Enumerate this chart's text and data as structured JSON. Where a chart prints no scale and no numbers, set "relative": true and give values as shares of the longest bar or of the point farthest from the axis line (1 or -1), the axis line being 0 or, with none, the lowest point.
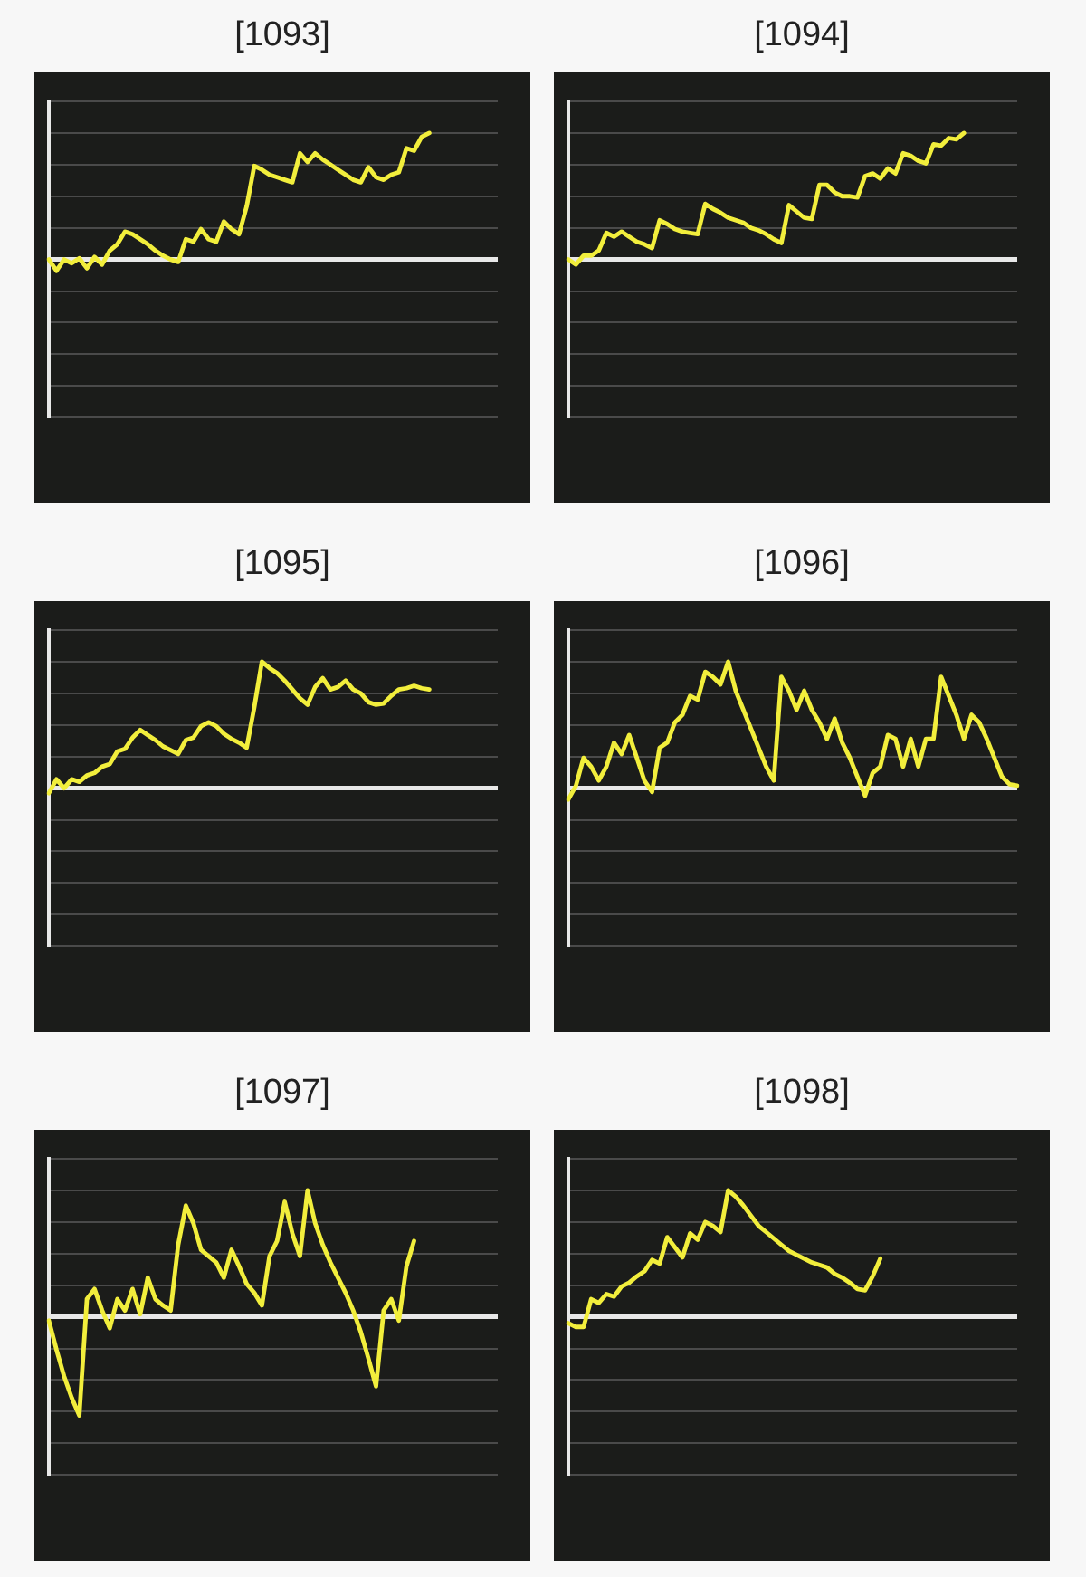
{
  "chart_data": [
    {
      "type": "line",
      "title": "[1093]",
      "relative": true,
      "grid": "y",
      "marker": "none",
      "line_style": "solid",
      "categories": [
        null,
        null,
        null,
        null,
        null,
        null,
        null,
        null,
        null,
        null,
        null,
        null,
        null,
        null,
        null,
        null,
        null,
        null,
        null,
        null,
        null,
        null,
        null,
        null,
        null,
        null,
        null,
        null,
        null,
        null,
        null,
        null,
        null,
        null,
        null,
        null,
        null,
        null,
        null,
        null,
        null,
        null,
        null,
        null,
        null,
        null,
        null,
        null,
        null,
        null,
        null,
        null,
        null,
        null,
        null,
        null,
        null,
        null,
        null,
        null
      ],
      "series": [
        {
          "color": "#f2ee3c",
          "values": [
            0,
            -0.09,
            0,
            -0.03,
            0.01,
            -0.07,
            0.02,
            -0.04,
            0.07,
            0.12,
            0.22,
            0.2,
            0.16,
            0.12,
            0.07,
            0.03,
            0,
            -0.02,
            0.16,
            0.14,
            0.24,
            0.16,
            0.14,
            0.3,
            0.24,
            0.2,
            0.42,
            0.74,
            0.71,
            0.67,
            0.65,
            0.63,
            0.61,
            0.84,
            0.77,
            0.84,
            0.79,
            0.75,
            0.71,
            0.67,
            0.63,
            0.61,
            0.73,
            0.65,
            0.63,
            0.67,
            0.69,
            0.88,
            0.86,
            0.97,
            1,
            null,
            null,
            null,
            null,
            null,
            null,
            null,
            null,
            null
          ]
        }
      ]
    },
    {
      "type": "line",
      "title": "[1094]",
      "relative": true,
      "grid": "y",
      "marker": "none",
      "line_style": "solid",
      "categories": [
        null,
        null,
        null,
        null,
        null,
        null,
        null,
        null,
        null,
        null,
        null,
        null,
        null,
        null,
        null,
        null,
        null,
        null,
        null,
        null,
        null,
        null,
        null,
        null,
        null,
        null,
        null,
        null,
        null,
        null,
        null,
        null,
        null,
        null,
        null,
        null,
        null,
        null,
        null,
        null,
        null,
        null,
        null,
        null,
        null,
        null,
        null,
        null,
        null,
        null,
        null,
        null,
        null,
        null,
        null,
        null,
        null,
        null,
        null,
        null
      ],
      "series": [
        {
          "color": "#f2ee3c",
          "values": [
            0,
            -0.04,
            0.03,
            0.03,
            0.07,
            0.21,
            0.18,
            0.22,
            0.18,
            0.14,
            0.12,
            0.09,
            0.31,
            0.28,
            0.24,
            0.22,
            0.21,
            0.2,
            0.44,
            0.4,
            0.37,
            0.33,
            0.31,
            0.29,
            0.25,
            0.23,
            0.2,
            0.16,
            0.13,
            0.43,
            0.38,
            0.33,
            0.32,
            0.59,
            0.59,
            0.53,
            0.5,
            0.5,
            0.49,
            0.66,
            0.68,
            0.64,
            0.72,
            0.68,
            0.84,
            0.82,
            0.78,
            0.76,
            0.91,
            0.9,
            0.96,
            0.95,
            1,
            null,
            null,
            null,
            null,
            null,
            null,
            null
          ]
        }
      ]
    },
    {
      "type": "line",
      "title": "[1095]",
      "relative": true,
      "grid": "y",
      "marker": "none",
      "line_style": "solid",
      "categories": [
        null,
        null,
        null,
        null,
        null,
        null,
        null,
        null,
        null,
        null,
        null,
        null,
        null,
        null,
        null,
        null,
        null,
        null,
        null,
        null,
        null,
        null,
        null,
        null,
        null,
        null,
        null,
        null,
        null,
        null,
        null,
        null,
        null,
        null,
        null,
        null,
        null,
        null,
        null,
        null,
        null,
        null,
        null,
        null,
        null,
        null,
        null,
        null,
        null,
        null,
        null,
        null,
        null,
        null,
        null,
        null,
        null,
        null,
        null,
        null
      ],
      "series": [
        {
          "color": "#f2ee3c",
          "values": [
            -0.04,
            0.07,
            0,
            0.07,
            0.05,
            0.1,
            0.12,
            0.17,
            0.19,
            0.29,
            0.31,
            0.4,
            0.46,
            0.42,
            0.38,
            0.33,
            0.3,
            0.27,
            0.38,
            0.4,
            0.49,
            0.52,
            0.49,
            0.43,
            0.39,
            0.36,
            0.32,
            0.64,
            1,
            0.95,
            0.91,
            0.85,
            0.78,
            0.71,
            0.66,
            0.8,
            0.87,
            0.78,
            0.8,
            0.85,
            0.78,
            0.75,
            0.68,
            0.66,
            0.67,
            0.73,
            0.78,
            0.79,
            0.81,
            0.79,
            0.78,
            null,
            null,
            null,
            null,
            null,
            null,
            null,
            null,
            null
          ]
        }
      ]
    },
    {
      "type": "line",
      "title": "[1096]",
      "relative": true,
      "grid": "y",
      "marker": "none",
      "line_style": "solid",
      "categories": [
        null,
        null,
        null,
        null,
        null,
        null,
        null,
        null,
        null,
        null,
        null,
        null,
        null,
        null,
        null,
        null,
        null,
        null,
        null,
        null,
        null,
        null,
        null,
        null,
        null,
        null,
        null,
        null,
        null,
        null,
        null,
        null,
        null,
        null,
        null,
        null,
        null,
        null,
        null,
        null,
        null,
        null,
        null,
        null,
        null,
        null,
        null,
        null,
        null,
        null,
        null,
        null,
        null,
        null,
        null,
        null,
        null,
        null,
        null,
        null
      ],
      "series": [
        {
          "color": "#f2ee3c",
          "values": [
            -0.09,
            0.02,
            0.24,
            0.17,
            0.06,
            0.17,
            0.36,
            0.27,
            0.42,
            0.24,
            0.06,
            -0.03,
            0.32,
            0.36,
            0.52,
            0.58,
            0.73,
            0.7,
            0.92,
            0.88,
            0.82,
            1,
            0.77,
            0.62,
            0.47,
            0.32,
            0.17,
            0.06,
            0.88,
            0.77,
            0.62,
            0.77,
            0.62,
            0.52,
            0.39,
            0.55,
            0.36,
            0.24,
            0.09,
            -0.06,
            0.12,
            0.17,
            0.42,
            0.39,
            0.17,
            0.39,
            0.17,
            0.39,
            0.39,
            0.88,
            0.73,
            0.58,
            0.39,
            0.58,
            0.52,
            0.39,
            0.24,
            0.09,
            0.03,
            0.02
          ]
        }
      ]
    },
    {
      "type": "line",
      "title": "[1097]",
      "relative": true,
      "grid": "y",
      "marker": "none",
      "line_style": "solid",
      "categories": [
        null,
        null,
        null,
        null,
        null,
        null,
        null,
        null,
        null,
        null,
        null,
        null,
        null,
        null,
        null,
        null,
        null,
        null,
        null,
        null,
        null,
        null,
        null,
        null,
        null,
        null,
        null,
        null,
        null,
        null,
        null,
        null,
        null,
        null,
        null,
        null,
        null,
        null,
        null,
        null,
        null,
        null,
        null,
        null,
        null,
        null,
        null,
        null,
        null,
        null,
        null,
        null,
        null,
        null,
        null,
        null,
        null,
        null,
        null,
        null
      ],
      "series": [
        {
          "color": "#f2ee3c",
          "values": [
            -0.03,
            -0.26,
            -0.47,
            -0.64,
            -0.78,
            0.14,
            0.22,
            0.05,
            -0.09,
            0.14,
            0.05,
            0.22,
            0.02,
            0.31,
            0.14,
            0.09,
            0.05,
            0.57,
            0.88,
            0.74,
            0.53,
            0.48,
            0.43,
            0.31,
            0.53,
            0.4,
            0.26,
            0.19,
            0.09,
            0.48,
            0.6,
            0.91,
            0.66,
            0.48,
            1,
            0.74,
            0.57,
            0.43,
            0.31,
            0.19,
            0.05,
            -0.12,
            -0.33,
            -0.55,
            0.05,
            0.14,
            -0.03,
            0.4,
            0.6,
            null,
            null,
            null,
            null,
            null,
            null,
            null,
            null,
            null,
            null,
            null
          ]
        }
      ]
    },
    {
      "type": "line",
      "title": "[1098]",
      "relative": true,
      "grid": "y",
      "marker": "none",
      "line_style": "solid",
      "categories": [
        null,
        null,
        null,
        null,
        null,
        null,
        null,
        null,
        null,
        null,
        null,
        null,
        null,
        null,
        null,
        null,
        null,
        null,
        null,
        null,
        null,
        null,
        null,
        null,
        null,
        null,
        null,
        null,
        null,
        null,
        null,
        null,
        null,
        null,
        null,
        null,
        null,
        null,
        null,
        null,
        null,
        null,
        null,
        null,
        null,
        null,
        null,
        null,
        null,
        null,
        null,
        null,
        null,
        null,
        null,
        null,
        null,
        null,
        null,
        null
      ],
      "series": [
        {
          "color": "#f2ee3c",
          "values": [
            -0.05,
            -0.08,
            -0.08,
            0.14,
            0.11,
            0.18,
            0.16,
            0.24,
            0.27,
            0.32,
            0.36,
            0.45,
            0.42,
            0.63,
            0.55,
            0.47,
            0.66,
            0.61,
            0.75,
            0.72,
            0.67,
            1,
            0.95,
            0.88,
            0.8,
            0.72,
            0.67,
            0.62,
            0.57,
            0.52,
            0.49,
            0.46,
            0.43,
            0.41,
            0.39,
            0.34,
            0.31,
            0.27,
            0.22,
            0.21,
            0.32,
            0.46,
            null,
            null,
            null,
            null,
            null,
            null,
            null,
            null,
            null,
            null,
            null,
            null,
            null,
            null,
            null,
            null,
            null,
            null
          ]
        }
      ]
    }
  ]
}
